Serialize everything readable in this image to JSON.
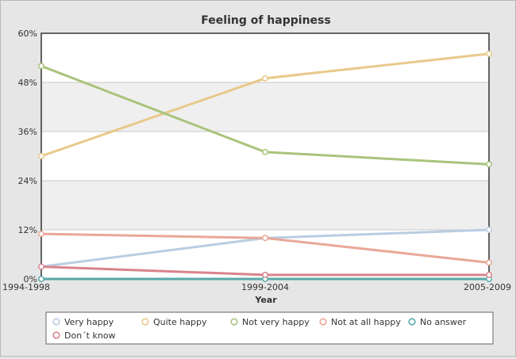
{
  "chart_data": {
    "type": "line",
    "title": "Feeling of happiness",
    "xlabel": "Year",
    "ylabel": "",
    "categories": [
      "1994-1998",
      "1999-2004",
      "2005-2009"
    ],
    "ylim": [
      0,
      60
    ],
    "yticks": [
      0,
      12,
      24,
      36,
      48,
      60
    ],
    "ytick_labels": [
      "0%",
      "12%",
      "24%",
      "36%",
      "48%",
      "60%"
    ],
    "grid": true,
    "legend_position": "bottom",
    "series": [
      {
        "name": "Very happy",
        "values": [
          3,
          10,
          12
        ],
        "color": "#b9cde3"
      },
      {
        "name": "Quite happy",
        "values": [
          30,
          49,
          55
        ],
        "color": "#e8c98a"
      },
      {
        "name": "Not very happy",
        "values": [
          52,
          31,
          28
        ],
        "color": "#a8c47c"
      },
      {
        "name": "Not at all happy",
        "values": [
          11,
          10,
          4
        ],
        "color": "#e8a896"
      },
      {
        "name": "No answer",
        "values": [
          0,
          0,
          0
        ],
        "color": "#5aa8a8"
      },
      {
        "name": "Don´t know",
        "values": [
          3,
          1,
          1
        ],
        "color": "#d9838c"
      }
    ]
  }
}
